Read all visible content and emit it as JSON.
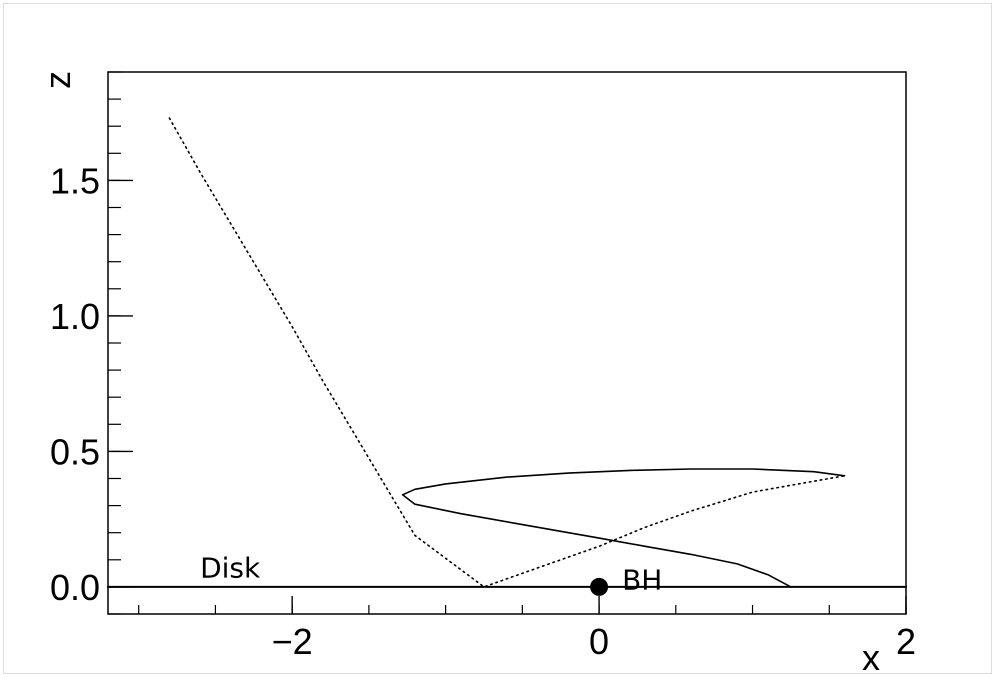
{
  "chart_data": {
    "type": "line",
    "title": "",
    "xlabel": "x",
    "ylabel": "z",
    "xlim": [
      -3.2,
      2.0
    ],
    "ylim": [
      -0.1,
      1.9
    ],
    "x_ticks": [
      {
        "value": -2,
        "label": "−2"
      },
      {
        "value": 0,
        "label": "0"
      },
      {
        "value": 2,
        "label": "2"
      }
    ],
    "y_ticks": [
      {
        "value": 0.0,
        "label": "0.0"
      },
      {
        "value": 0.5,
        "label": "0.5"
      },
      {
        "value": 1.0,
        "label": "1.0"
      },
      {
        "value": 1.5,
        "label": "1.5"
      }
    ],
    "grid": false,
    "series": [
      {
        "style": "dotted",
        "color": "#000000",
        "points": [
          [
            -2.8,
            1.73
          ],
          [
            -2.6,
            1.53
          ],
          [
            -2.4,
            1.34
          ],
          [
            -2.2,
            1.15
          ],
          [
            -2.0,
            0.96
          ],
          [
            -1.8,
            0.76
          ],
          [
            -1.6,
            0.57
          ],
          [
            -1.4,
            0.38
          ],
          [
            -1.2,
            0.19
          ],
          [
            -0.75,
            0.0
          ],
          [
            -0.4,
            0.07
          ],
          [
            0.0,
            0.15
          ],
          [
            0.3,
            0.22
          ],
          [
            0.6,
            0.28
          ],
          [
            1.0,
            0.35
          ],
          [
            1.3,
            0.38
          ],
          [
            1.6,
            0.41
          ]
        ]
      },
      {
        "style": "solid",
        "color": "#000000",
        "points": [
          [
            1.6,
            0.41
          ],
          [
            1.4,
            0.425
          ],
          [
            1.0,
            0.435
          ],
          [
            0.6,
            0.435
          ],
          [
            0.2,
            0.43
          ],
          [
            -0.2,
            0.42
          ],
          [
            -0.6,
            0.405
          ],
          [
            -1.0,
            0.38
          ],
          [
            -1.2,
            0.36
          ],
          [
            -1.28,
            0.34
          ],
          [
            -1.2,
            0.305
          ],
          [
            -0.9,
            0.27
          ],
          [
            -0.5,
            0.23
          ],
          [
            0.0,
            0.18
          ],
          [
            0.3,
            0.15
          ],
          [
            0.6,
            0.12
          ],
          [
            0.9,
            0.085
          ],
          [
            1.1,
            0.045
          ],
          [
            1.25,
            0.0
          ]
        ]
      },
      {
        "name": "Disk",
        "style": "solid",
        "color": "#000000",
        "points": [
          [
            -3.2,
            0.0
          ],
          [
            2.0,
            0.0
          ]
        ]
      }
    ],
    "annotations": [
      {
        "text": "Disk",
        "x": -2.6,
        "y": 0.035
      },
      {
        "text": "BH",
        "x": 0.15,
        "y": -0.01
      }
    ],
    "markers": [
      {
        "name": "BH",
        "x": 0.0,
        "y": 0.0,
        "shape": "filled-circle",
        "color": "#000000"
      }
    ]
  }
}
